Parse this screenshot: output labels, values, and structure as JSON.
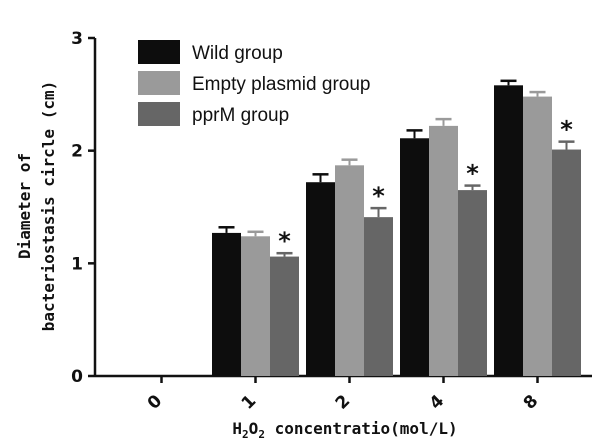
{
  "chart_data": {
    "type": "bar",
    "ylabel_lines": [
      "Diameter of",
      "bacteriostasis circle (cm)"
    ],
    "xlabel_parts": {
      "h": "H",
      "sub1": "2",
      "o": "O",
      "sub2": "2",
      "rest": " concentratio(mol/L)"
    },
    "categories": [
      "0",
      "1",
      "2",
      "4",
      "8"
    ],
    "ylim": [
      0,
      3
    ],
    "yticks": [
      "0",
      "1",
      "2",
      "3"
    ],
    "legend_position": "top-left",
    "series": [
      {
        "name": "Wild group",
        "color": "#0d0d0d",
        "values": [
          0,
          1.27,
          1.72,
          2.11,
          2.58
        ],
        "errors": [
          0,
          0.05,
          0.07,
          0.07,
          0.04
        ]
      },
      {
        "name": "Empty plasmid group",
        "color": "#9a9a9a",
        "values": [
          0,
          1.24,
          1.87,
          2.22,
          2.48
        ],
        "errors": [
          0,
          0.04,
          0.05,
          0.06,
          0.04
        ]
      },
      {
        "name": "pprM group",
        "color": "#666666",
        "values": [
          0,
          1.06,
          1.41,
          1.65,
          2.01
        ],
        "errors": [
          0,
          0.03,
          0.08,
          0.04,
          0.07
        ]
      }
    ],
    "significance": [
      {
        "series": 2,
        "category": 1,
        "label": "*"
      },
      {
        "series": 2,
        "category": 2,
        "label": "*"
      },
      {
        "series": 2,
        "category": 3,
        "label": "*"
      },
      {
        "series": 2,
        "category": 4,
        "label": "*"
      }
    ]
  }
}
